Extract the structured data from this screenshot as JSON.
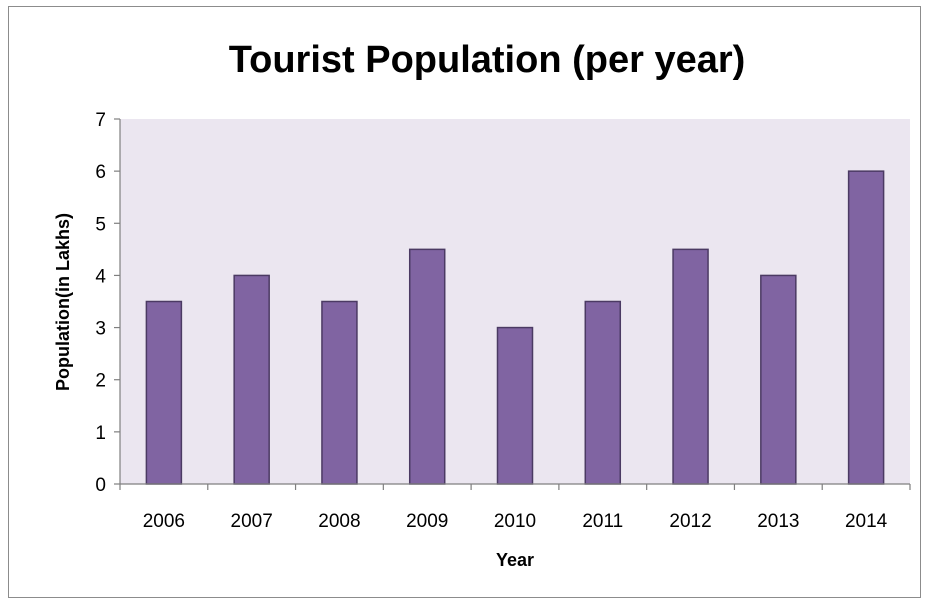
{
  "chart_data": {
    "type": "bar",
    "title": "Tourist Population (per year)",
    "xlabel": "Year",
    "ylabel": "Population(in Lakhs)",
    "categories": [
      "2006",
      "2007",
      "2008",
      "2009",
      "2010",
      "2011",
      "2012",
      "2013",
      "2014"
    ],
    "values": [
      3.5,
      4,
      3.5,
      4.5,
      3,
      3.5,
      4.5,
      4,
      6
    ],
    "ylim": [
      0,
      7
    ],
    "yticks": [
      "0",
      "1",
      "2",
      "3",
      "4",
      "5",
      "6",
      "7"
    ],
    "grid": false,
    "legend": "none",
    "colors": {
      "bar": "#8064a2",
      "bar_edge": "#4b3a63",
      "plot_bg": "#ebe6f0",
      "axis": "#7f7f7f"
    }
  }
}
